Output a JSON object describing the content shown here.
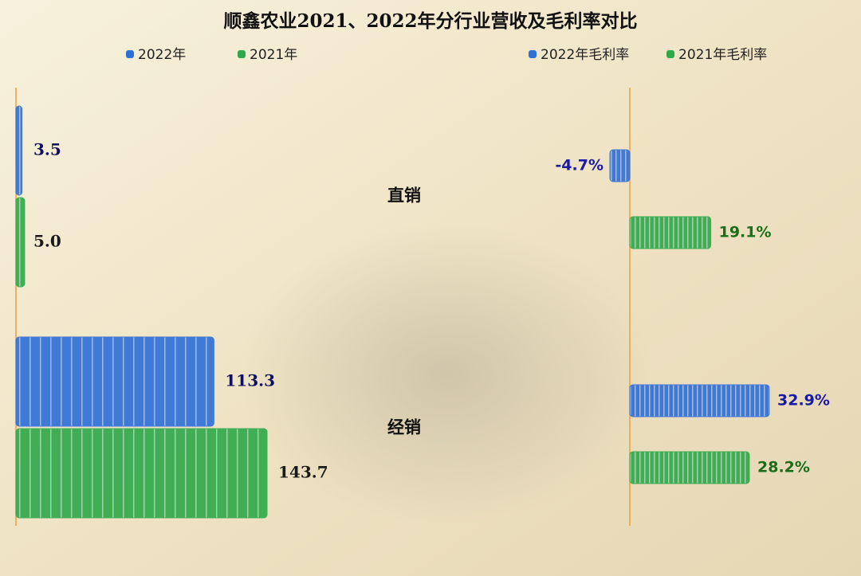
{
  "chart_data": [
    {
      "type": "bar",
      "orientation": "horizontal",
      "title": "顺鑫农业2021、2022年分行业营收及毛利率对比",
      "categories": [
        "直销",
        "经销"
      ],
      "series": [
        {
          "name": "2022年",
          "color": "#2e6fd8",
          "values": [
            3.5,
            113.3
          ],
          "value_labels": [
            "3.5",
            "113.3"
          ]
        },
        {
          "name": "2021年",
          "color": "#2fa84a",
          "values": [
            5.0,
            143.7
          ],
          "value_labels": [
            "5.0",
            "143.7"
          ]
        }
      ]
    },
    {
      "type": "bar",
      "orientation": "horizontal",
      "series": [
        {
          "name": "2022年毛利率",
          "color": "#2e6fd8",
          "values": [
            -4.7,
            32.9
          ],
          "value_labels": [
            "-4.7%",
            "32.9%"
          ]
        },
        {
          "name": "2021年毛利率",
          "color": "#2fa84a",
          "values": [
            19.1,
            28.2
          ],
          "value_labels": [
            "19.1%",
            "28.2%"
          ]
        }
      ]
    }
  ]
}
